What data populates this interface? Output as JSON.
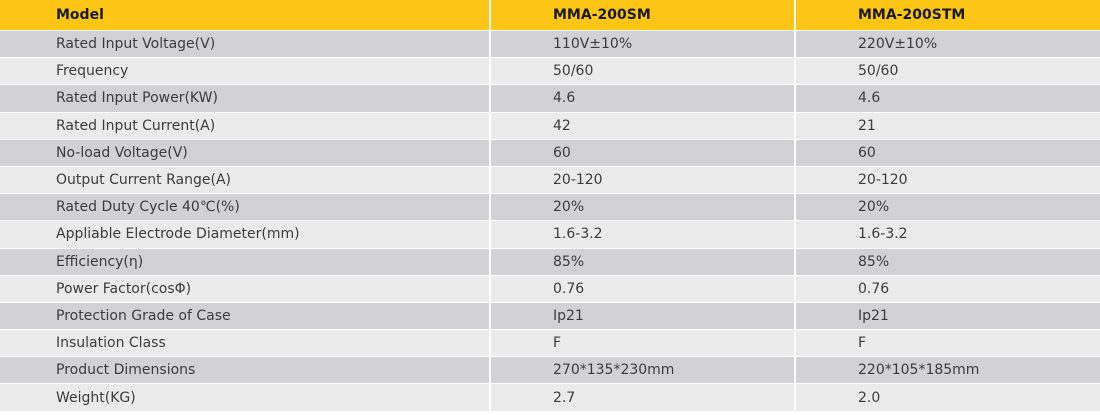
{
  "header": {
    "model_label": "Model",
    "models": [
      "MMA-200SM",
      "MMA-200STM"
    ]
  },
  "rows": [
    {
      "label": "Rated Input Voltage(V)",
      "values": [
        "110V±10%",
        "220V±10%"
      ]
    },
    {
      "label": "Frequency",
      "values": [
        "50/60",
        "50/60"
      ]
    },
    {
      "label": "Rated Input Power(KW)",
      "values": [
        "4.6",
        "4.6"
      ]
    },
    {
      "label": "Rated Input Current(A)",
      "values": [
        "42",
        "21"
      ]
    },
    {
      "label": "No-load Voltage(V)",
      "values": [
        "60",
        "60"
      ]
    },
    {
      "label": "Output Current Range(A)",
      "values": [
        "20-120",
        "20-120"
      ]
    },
    {
      "label": "Rated Duty Cycle 40℃(%)",
      "values": [
        "20%",
        "20%"
      ]
    },
    {
      "label": "Appliable Electrode Diameter(mm)",
      "values": [
        "1.6-3.2",
        "1.6-3.2"
      ]
    },
    {
      "label": "Efficiency(η)",
      "values": [
        "85%",
        "85%"
      ]
    },
    {
      "label": "Power Factor(cosΦ)",
      "values": [
        "0.76",
        "0.76"
      ]
    },
    {
      "label": "Protection Grade of Case",
      "values": [
        "Ip21",
        "Ip21"
      ]
    },
    {
      "label": "Insulation Class",
      "values": [
        "F",
        "F"
      ]
    },
    {
      "label": "Product Dimensions",
      "values": [
        "270*135*230mm",
        "220*105*185mm"
      ]
    },
    {
      "label": "Weight(KG)",
      "values": [
        "2.7",
        "2.0"
      ]
    }
  ],
  "colors": {
    "header_bg": "#fdc514",
    "row_dark": "#d2d2d4",
    "row_light": "#ebebec"
  }
}
